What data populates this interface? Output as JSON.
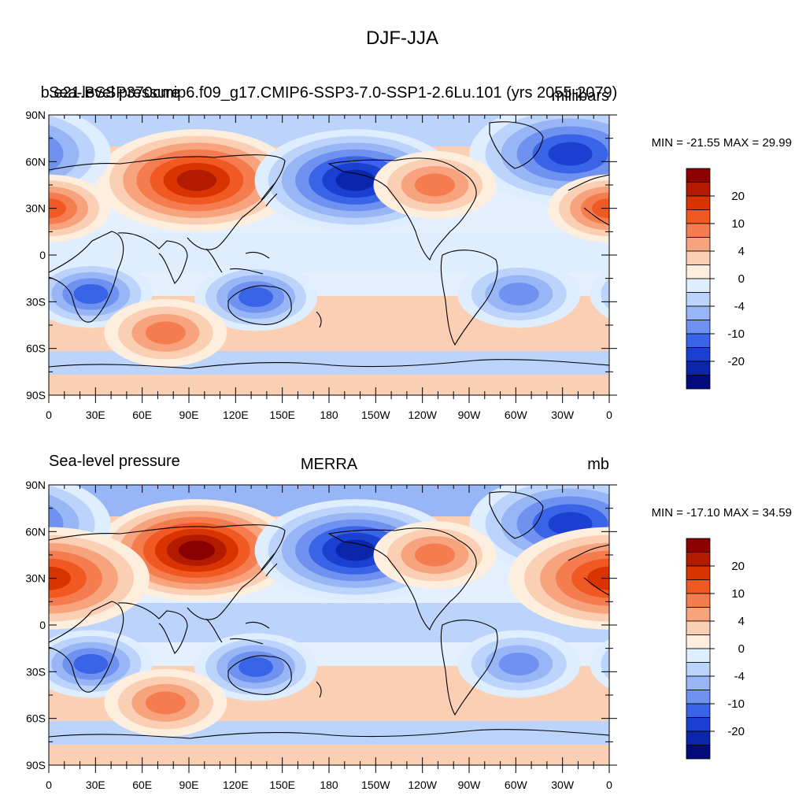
{
  "figure": {
    "title": "DJF-JJA"
  },
  "contour_levels": [
    -25,
    -20,
    -15,
    -10,
    -6,
    -4,
    -2,
    0,
    2,
    4,
    6,
    10,
    15,
    20,
    25
  ],
  "colorbar_labels": [
    "20",
    "10",
    "4",
    "0",
    "-4",
    "-10",
    "-20"
  ],
  "colorbar_colors": [
    "#8b0000",
    "#b31b00",
    "#d93400",
    "#f05a22",
    "#f57c4f",
    "#f7a47e",
    "#fbcfb4",
    "#fdeedd",
    "#dfeeff",
    "#bcd3fb",
    "#98b5f6",
    "#6f92f0",
    "#3a64e8",
    "#1a3fd1",
    "#0b25ab",
    "#020b7c"
  ],
  "lat_labels": [
    "90N",
    "60N",
    "30N",
    "0",
    "30S",
    "60S",
    "90S"
  ],
  "lon_labels": [
    "0",
    "30E",
    "60E",
    "90E",
    "120E",
    "150E",
    "180",
    "150W",
    "120W",
    "90W",
    "60W",
    "30W",
    "0"
  ],
  "panels": [
    {
      "left_title": "Sea-level pressure",
      "center_title": "b.e21.BSSP370cmip6.f09_g17.CMIP6-SSP3-7.0-SSP1-2.6Lu.101 (yrs 2055-2079)",
      "right_title": "millibars",
      "stats": "MIN = -21.55 MAX =  29.99",
      "min": -21.55,
      "max": 29.99
    },
    {
      "left_title": "Sea-level pressure",
      "center_title": "MERRA",
      "right_title": "mb",
      "stats": "MIN = -17.10 MAX =  34.59",
      "min": -17.1,
      "max": 34.59
    }
  ],
  "map_features": [
    {
      "name": "siberian-high",
      "value": 24,
      "lon": 95,
      "lat": 48
    },
    {
      "name": "aleutian-low",
      "value": -20,
      "lon": -163,
      "lat": 48
    },
    {
      "name": "icelandic-low",
      "value": -16,
      "lon": -25,
      "lat": 65
    },
    {
      "name": "australia-low",
      "value": -12,
      "lon": 133,
      "lat": -27
    },
    {
      "name": "south-africa-low",
      "value": -10,
      "lon": 27,
      "lat": -25
    },
    {
      "name": "south-america-low",
      "value": -8,
      "lon": -58,
      "lat": -25
    },
    {
      "name": "south-indian-high",
      "value": 9,
      "lon": 75,
      "lat": -50
    },
    {
      "name": "north-america-high",
      "value": 7,
      "lon": -112,
      "lat": 45
    },
    {
      "name": "sahara-high",
      "value": 14,
      "lon": 0,
      "lat": 30
    }
  ]
}
